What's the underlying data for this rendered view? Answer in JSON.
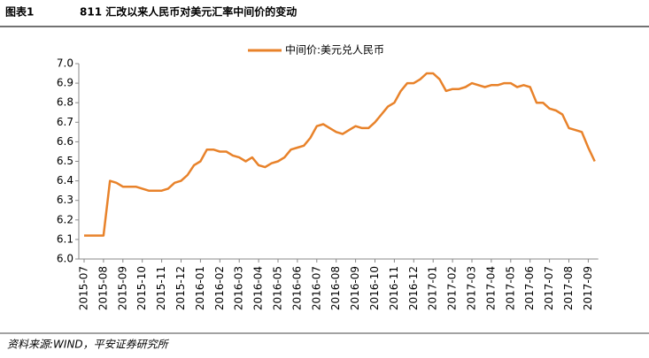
{
  "chart_data": {
    "type": "line",
    "title_label": "图表1",
    "title": "811 汇改以来人民币对美元汇率中间价的变动",
    "source": "资料来源:WIND，平安证券研究所",
    "categories": [
      "2015-07",
      null,
      null,
      "2015-08",
      null,
      null,
      "2015-09",
      null,
      null,
      "2015-10",
      null,
      null,
      "2015-11",
      null,
      null,
      "2015-12",
      null,
      null,
      "2016-01",
      null,
      null,
      "2016-02",
      null,
      null,
      "2016-03",
      null,
      null,
      "2016-04",
      null,
      null,
      "2016-05",
      null,
      null,
      "2016-06",
      null,
      null,
      "2016-07",
      null,
      null,
      "2016-08",
      null,
      null,
      "2016-09",
      null,
      null,
      "2016-10",
      null,
      null,
      "2016-11",
      null,
      null,
      "2016-12",
      null,
      null,
      "2017-01",
      null,
      null,
      "2017-02",
      null,
      null,
      "2017-03",
      null,
      null,
      "2017-04",
      null,
      null,
      "2017-05",
      null,
      null,
      "2017-06",
      null,
      null,
      "2017-07",
      null,
      null,
      "2017-08",
      null,
      null,
      "2017-09",
      null
    ],
    "series": [
      {
        "name": "中间价:美元兑人民币",
        "color": "#e8822a",
        "values": [
          6.12,
          6.12,
          6.12,
          6.12,
          6.4,
          6.39,
          6.37,
          6.37,
          6.37,
          6.36,
          6.35,
          6.35,
          6.35,
          6.36,
          6.39,
          6.4,
          6.43,
          6.48,
          6.5,
          6.56,
          6.56,
          6.55,
          6.55,
          6.53,
          6.52,
          6.5,
          6.52,
          6.48,
          6.47,
          6.49,
          6.5,
          6.52,
          6.56,
          6.57,
          6.58,
          6.62,
          6.68,
          6.69,
          6.67,
          6.65,
          6.64,
          6.66,
          6.68,
          6.67,
          6.67,
          6.7,
          6.74,
          6.78,
          6.8,
          6.86,
          6.9,
          6.9,
          6.92,
          6.95,
          6.95,
          6.92,
          6.86,
          6.87,
          6.87,
          6.88,
          6.9,
          6.89,
          6.88,
          6.89,
          6.89,
          6.9,
          6.9,
          6.88,
          6.89,
          6.88,
          6.8,
          6.8,
          6.77,
          6.76,
          6.74,
          6.67,
          6.66,
          6.65,
          6.57,
          6.5
        ]
      }
    ],
    "ylim": [
      6.0,
      7.0
    ],
    "yticks": [
      {
        "value": 6.0,
        "label": "6.0"
      },
      6.1,
      6.2,
      6.3,
      6.4,
      6.5,
      6.6,
      6.7,
      6.8,
      6.9,
      {
        "value": 7.0,
        "label": "7.0"
      }
    ],
    "grid": false
  }
}
